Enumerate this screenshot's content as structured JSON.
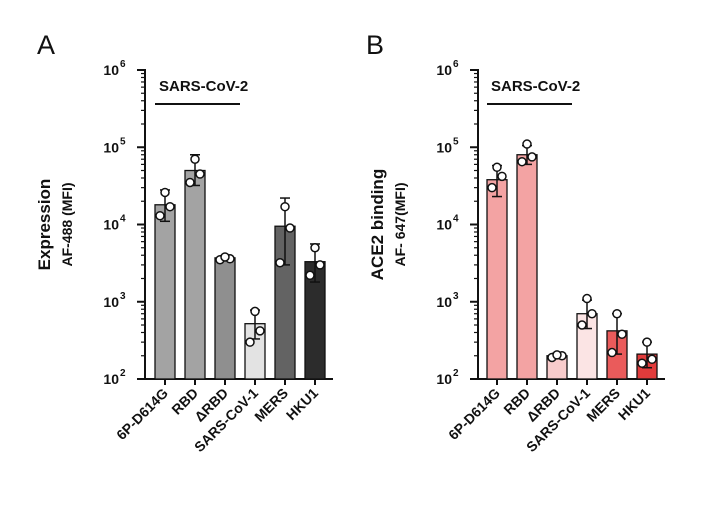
{
  "chart_data": [
    {
      "type": "bar",
      "panel_label": "A",
      "ylabel": "Expression",
      "ylabel_sub": "AF-488 (MFI)",
      "yscale": "log",
      "ylim": [
        100,
        1000000
      ],
      "yticks": [
        {
          "base": "10",
          "exp": "2",
          "value": 100
        },
        {
          "base": "10",
          "exp": "3",
          "value": 1000
        },
        {
          "base": "10",
          "exp": "4",
          "value": 10000
        },
        {
          "base": "10",
          "exp": "5",
          "value": 100000
        },
        {
          "base": "10",
          "exp": "6",
          "value": 1000000
        }
      ],
      "categories": [
        "6P-D614G",
        "RBD",
        "ΔRBD",
        "SARS-CoV-1",
        "MERS",
        "HKU1"
      ],
      "values": [
        18000,
        50000,
        3700,
        520,
        9500,
        3300
      ],
      "error_low": [
        11000,
        32000,
        3450,
        330,
        3000,
        1800
      ],
      "error_high": [
        28000,
        80000,
        3950,
        780,
        22000,
        5600
      ],
      "points": [
        [
          13000,
          17000,
          26000
        ],
        [
          35000,
          45000,
          70000
        ],
        [
          3500,
          3600,
          3800
        ],
        [
          300,
          420,
          750
        ],
        [
          3200,
          9000,
          17000
        ],
        [
          2200,
          3000,
          5000
        ]
      ],
      "bar_colors": [
        "#a3a3a3",
        "#a3a3a3",
        "#8f8f8f",
        "#e3e3e3",
        "#636363",
        "#2c2c2c"
      ],
      "bracket": {
        "label": "SARS-CoV-2",
        "from": "6P-D614G",
        "to": "ΔRBD"
      }
    },
    {
      "type": "bar",
      "panel_label": "B",
      "ylabel": "ACE2 binding",
      "ylabel_sub": "AF- 647(MFI)",
      "yscale": "log",
      "ylim": [
        100,
        1000000
      ],
      "yticks": [
        {
          "base": "10",
          "exp": "2",
          "value": 100
        },
        {
          "base": "10",
          "exp": "3",
          "value": 1000
        },
        {
          "base": "10",
          "exp": "4",
          "value": 10000
        },
        {
          "base": "10",
          "exp": "5",
          "value": 100000
        },
        {
          "base": "10",
          "exp": "6",
          "value": 1000000
        }
      ],
      "categories": [
        "6P-D614G",
        "RBD",
        "ΔRBD",
        "SARS-CoV-1",
        "MERS",
        "HKU1"
      ],
      "values": [
        38000,
        80000,
        200,
        700,
        420,
        210
      ],
      "error_low": [
        23000,
        60000,
        185,
        450,
        210,
        140
      ],
      "error_high": [
        58000,
        105000,
        215,
        1050,
        700,
        300
      ],
      "points": [
        [
          30000,
          42000,
          55000
        ],
        [
          65000,
          75000,
          110000
        ],
        [
          190,
          200,
          205
        ],
        [
          500,
          700,
          1100
        ],
        [
          220,
          380,
          700
        ],
        [
          160,
          180,
          300
        ]
      ],
      "bar_colors": [
        "#f3a3a3",
        "#f3a3a3",
        "#f8cccc",
        "#fbe4e4",
        "#ea5b5b",
        "#e13b3b"
      ],
      "bracket": {
        "label": "SARS-CoV-2",
        "from": "6P-D614G",
        "to": "ΔRBD"
      }
    }
  ]
}
